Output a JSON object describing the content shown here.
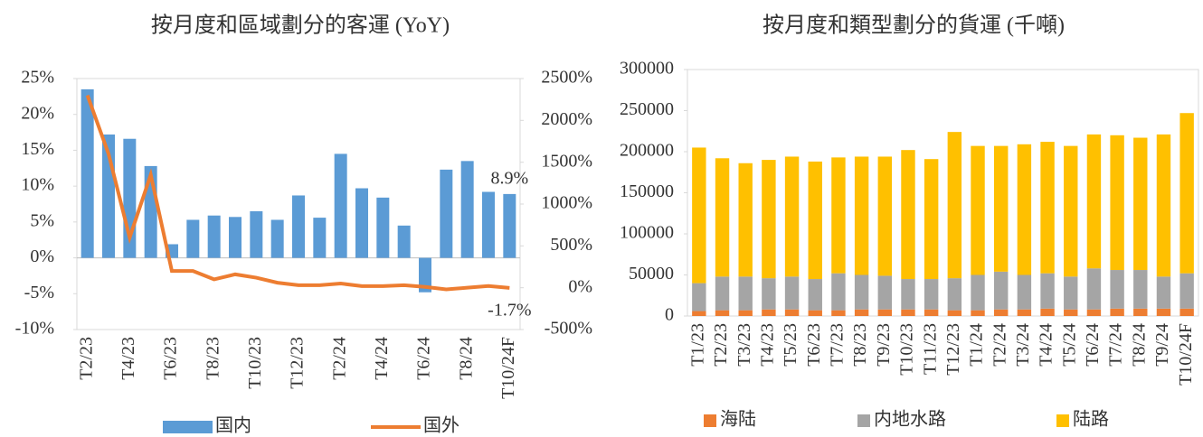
{
  "chart_data": [
    {
      "type": "combo",
      "title": "按月度和區域劃分的客運 (YoY)",
      "categories": [
        "T2/23",
        null,
        "T4/23",
        null,
        "T6/23",
        null,
        "T8/23",
        null,
        "T10/23",
        null,
        "T12/23",
        null,
        "T2/24",
        null,
        "T4/24",
        null,
        "T6/24",
        null,
        "T8/24",
        null,
        "T10/24F"
      ],
      "series": [
        {
          "name": "国内",
          "color": "#5b9bd5",
          "values": [
            23.5,
            17.2,
            16.6,
            12.8,
            1.9,
            5.3,
            5.9,
            5.7,
            6.5,
            5.3,
            8.7,
            5.6,
            14.5,
            9.7,
            8.4,
            4.5,
            -4.8,
            12.3,
            13.5,
            9.2,
            8.9
          ],
          "value_labels": [
            null,
            null,
            null,
            null,
            null,
            null,
            null,
            null,
            null,
            null,
            null,
            null,
            null,
            null,
            null,
            null,
            null,
            null,
            null,
            null,
            "8.9%"
          ]
        },
        {
          "name": "国外",
          "color": "#ed7d31",
          "axis": "y2",
          "values": [
            2300,
            1600,
            600,
            1350,
            200,
            200,
            100,
            160,
            120,
            60,
            30,
            30,
            50,
            20,
            20,
            30,
            10,
            -20,
            0,
            20,
            -1.7
          ],
          "value_labels": [
            null,
            null,
            null,
            null,
            null,
            null,
            null,
            null,
            null,
            null,
            null,
            null,
            null,
            null,
            null,
            null,
            null,
            null,
            null,
            null,
            "-1.7%"
          ]
        }
      ],
      "ylim": [
        -10,
        25
      ],
      "yticks": [
        {
          "value": -10,
          "label": "-10%"
        },
        {
          "value": -5,
          "label": "-5%"
        },
        {
          "value": 0,
          "label": "0%"
        },
        {
          "value": 5,
          "label": "5%"
        },
        {
          "value": 10,
          "label": "10%"
        },
        {
          "value": 15,
          "label": "15%"
        },
        {
          "value": 20,
          "label": "20%"
        },
        {
          "value": 25,
          "label": "25%"
        }
      ],
      "y2lim": [
        -500,
        2500
      ],
      "y2ticks": [
        {
          "value": -500,
          "label": "-500%"
        },
        {
          "value": 0,
          "label": "0%"
        },
        {
          "value": 500,
          "label": "500%"
        },
        {
          "value": 1000,
          "label": "1000%"
        },
        {
          "value": 1500,
          "label": "1500%"
        },
        {
          "value": 2000,
          "label": "2000%"
        },
        {
          "value": 2500,
          "label": "2500%"
        }
      ]
    },
    {
      "type": "stacked_bar",
      "title": "按月度和類型劃分的貨運 (千噸)",
      "categories": [
        "T1/23",
        "T2/23",
        "T3/23",
        "T4/23",
        "T5/23",
        "T6/23",
        "T7/23",
        "T8/23",
        "T9/23",
        "T10/23",
        "T11/23",
        "T12/23",
        "T1/24",
        "T2/24",
        "T3/24",
        "T4/24",
        "T5/24",
        "T6/24",
        "T7/24",
        "T8/24",
        "T9/24",
        "T10/24F"
      ],
      "series": [
        {
          "name": "海陆",
          "color": "#ed7d31",
          "values": [
            6000,
            7000,
            7000,
            8000,
            8000,
            7000,
            7000,
            8000,
            8000,
            8000,
            8000,
            7000,
            7000,
            8000,
            8000,
            9000,
            8000,
            8000,
            9000,
            9000,
            9000,
            9000
          ]
        },
        {
          "name": "内地水路",
          "color": "#a5a5a5",
          "values": [
            34000,
            41000,
            41000,
            38000,
            40000,
            38000,
            45000,
            42000,
            41000,
            37000,
            37000,
            39000,
            43000,
            46000,
            42000,
            43000,
            40000,
            50000,
            47000,
            47000,
            39000,
            43000
          ]
        },
        {
          "name": "陆路",
          "color": "#ffc000",
          "values": [
            165000,
            144000,
            138000,
            144000,
            146000,
            143000,
            141000,
            144000,
            145000,
            157000,
            146000,
            178000,
            157000,
            153000,
            159000,
            160000,
            159000,
            163000,
            164000,
            161000,
            173000,
            195000
          ]
        }
      ],
      "ylim": [
        0,
        300000
      ],
      "yticks": [
        0,
        50000,
        100000,
        150000,
        200000,
        250000,
        300000
      ]
    }
  ]
}
